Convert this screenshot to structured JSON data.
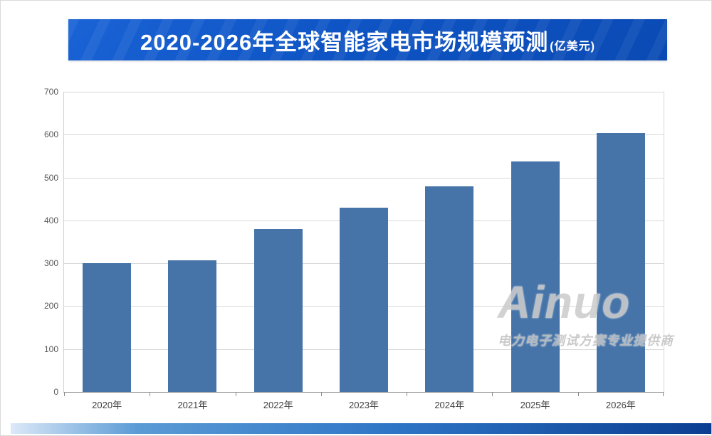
{
  "banner": {
    "title": "2020-2026年全球智能家电市场规模预测",
    "unit": "(亿美元)",
    "background_blue": "#0e54c4"
  },
  "watermark": {
    "brand": "Ainuo",
    "slogan": "电力电子测试方案专业提供商",
    "color": "#cccccc"
  },
  "chart_data": {
    "type": "bar",
    "title": "2020-2026年全球智能家电市场规模预测",
    "unit_label": "亿美元",
    "categories": [
      "2020年",
      "2021年",
      "2022年",
      "2023年",
      "2024年",
      "2025年",
      "2026年"
    ],
    "values": [
      300,
      307,
      380,
      430,
      480,
      537,
      603
    ],
    "ylim": [
      0,
      700
    ],
    "ytick_step": 100,
    "yticks": [
      0,
      100,
      200,
      300,
      400,
      500,
      600,
      700
    ],
    "bar_color": "#4674a8",
    "gridline_color": "#d9d9d9",
    "grid": true,
    "legend": false,
    "xlabel": "",
    "ylabel": ""
  }
}
